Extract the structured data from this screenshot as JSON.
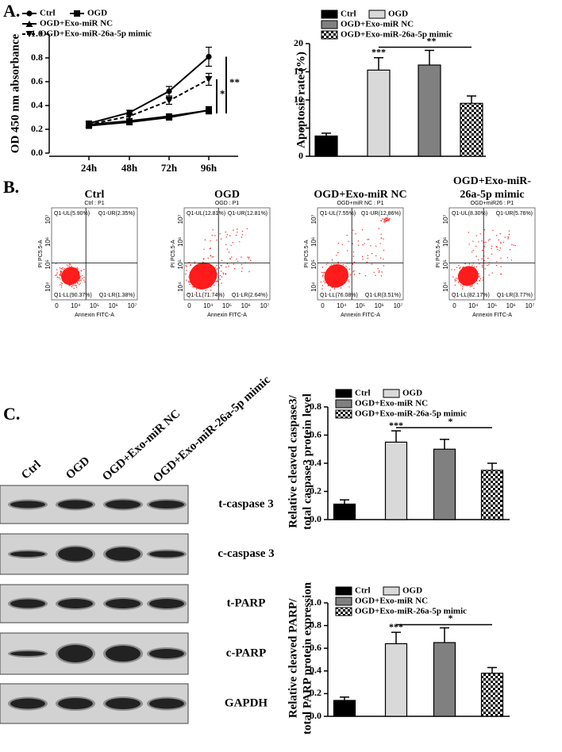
{
  "panel_labels": [
    "A.",
    "B.",
    "C."
  ],
  "chart_data": [
    {
      "type": "line",
      "ylabel": "OD 450 nm absorbance",
      "categories": [
        "24h",
        "48h",
        "72h",
        "96h"
      ],
      "ylim": [
        0,
        1
      ],
      "yticks": [
        {
          "value": 0,
          "label": "0.0"
        },
        0.2,
        0.4,
        0.6,
        0.8,
        {
          "value": 1,
          "label": "1.0"
        }
      ],
      "series": [
        {
          "name": "Ctrl",
          "color": "#000000",
          "marker": "circle",
          "dashed": false,
          "values": [
            0.25,
            0.34,
            0.52,
            0.81
          ],
          "errors": [
            0.02,
            0.02,
            0.04,
            0.08
          ]
        },
        {
          "name": "OGD",
          "color": "#000000",
          "marker": "square",
          "dashed": false,
          "values": [
            0.23,
            0.26,
            0.3,
            0.36
          ],
          "errors": [
            0.02,
            0.02,
            0.02,
            0.03
          ]
        },
        {
          "name": "OGD+Exo-miR NC",
          "color": "#000000",
          "marker": "triangle-up",
          "dashed": false,
          "values": [
            0.24,
            0.27,
            0.31,
            0.36
          ],
          "errors": [
            0.02,
            0.02,
            0.02,
            0.03
          ]
        },
        {
          "name": "OGD+Exo-miR-26a-5p mimic",
          "color": "#000000",
          "marker": "triangle-down",
          "dashed": true,
          "values": [
            0.24,
            0.31,
            0.44,
            0.62
          ],
          "errors": [
            0.02,
            0.02,
            0.03,
            0.05
          ]
        }
      ],
      "annotations": [
        "*",
        "**"
      ]
    },
    {
      "type": "bar",
      "ylabel": [
        "Apoptosis rate (%)"
      ],
      "ylim": [
        0,
        20
      ],
      "yticks": [
        0,
        5,
        10,
        15,
        20
      ],
      "series": [
        {
          "name": "Ctrl",
          "color": "#000000",
          "values": [
            3.6
          ],
          "errors": [
            0.5
          ]
        },
        {
          "name": "OGD",
          "color": "#d9d9d9",
          "values": [
            15.3
          ],
          "errors": [
            2.2
          ]
        },
        {
          "name": "OGD+Exo-miR NC",
          "color": "#808080",
          "values": [
            16.2
          ],
          "errors": [
            2.6
          ]
        },
        {
          "name": "OGD+Exo-miR-26a-5p mimic",
          "color": "#000000",
          "pattern": "checker",
          "values": [
            9.4
          ],
          "errors": [
            1.3
          ]
        }
      ],
      "annotations": [
        "***",
        "**"
      ]
    },
    {
      "type": "bar",
      "ylabel": [
        "Relative cleaved caspase3/",
        "total caspase3 protein level"
      ],
      "ylim": [
        0,
        0.8
      ],
      "yticks": [
        {
          "value": 0,
          "label": "0.0"
        },
        0.2,
        0.4,
        0.6,
        0.8
      ],
      "series": [
        {
          "name": "Ctrl",
          "color": "#000000",
          "values": [
            0.11
          ],
          "errors": [
            0.03
          ]
        },
        {
          "name": "OGD",
          "color": "#d9d9d9",
          "values": [
            0.55
          ],
          "errors": [
            0.08
          ]
        },
        {
          "name": "OGD+Exo-miR NC",
          "color": "#808080",
          "values": [
            0.5
          ],
          "errors": [
            0.07
          ]
        },
        {
          "name": "OGD+Exo-miR-26a-5p mimic",
          "color": "#000000",
          "pattern": "checker",
          "values": [
            0.35
          ],
          "errors": [
            0.05
          ]
        }
      ],
      "annotations": [
        "***",
        "*"
      ]
    },
    {
      "type": "bar",
      "ylabel": [
        "Relative cleaved PARP/",
        "total PARP protein expression"
      ],
      "ylim": [
        0,
        1
      ],
      "yticks": [
        {
          "value": 0,
          "label": "0.0"
        },
        0.2,
        0.4,
        0.6,
        0.8,
        {
          "value": 1,
          "label": "1.0"
        }
      ],
      "series": [
        {
          "name": "Ctrl",
          "color": "#000000",
          "values": [
            0.14
          ],
          "errors": [
            0.03
          ]
        },
        {
          "name": "OGD",
          "color": "#d9d9d9",
          "values": [
            0.64
          ],
          "errors": [
            0.1
          ]
        },
        {
          "name": "OGD+Exo-miR NC",
          "color": "#808080",
          "values": [
            0.65
          ],
          "errors": [
            0.13
          ]
        },
        {
          "name": "OGD+Exo-miR-26a-5p mimic",
          "color": "#000000",
          "pattern": "checker",
          "values": [
            0.38
          ],
          "errors": [
            0.05
          ]
        }
      ],
      "annotations": [
        "***",
        "*"
      ]
    }
  ],
  "flow": {
    "x_label": "Annexin FITC-A",
    "y_label": "PI PC5.5-A",
    "xticks": [
      "0",
      "10⁴",
      "10⁵",
      "10⁶",
      "10⁷"
    ],
    "yticks": [
      "10⁴",
      "10⁵",
      "10⁶",
      "10⁷"
    ],
    "plots": [
      {
        "title": [
          "Ctrl"
        ],
        "subtitle": "Ctrl : P1",
        "quadrants": [
          "Q1-UL(5.90%)",
          "Q1-UR(2.35%)",
          "Q1-LL(90.37%)",
          "Q1-LR(1.38%)"
        ]
      },
      {
        "title": [
          "OGD"
        ],
        "subtitle": "OGD : P1",
        "quadrants": [
          "Q1-UL(12.81%)",
          "Q1-UR(12.81%)",
          "Q1-LL(71.74%)",
          "Q1-LR(2.64%)"
        ]
      },
      {
        "title": [
          "OGD+Exo-miR NC"
        ],
        "subtitle": "OGD+miR NC : P1",
        "quadrants": [
          "Q1-UL(7.55%)",
          "Q1-UR(12.86%)",
          "Q1-LL(76.08%)",
          "Q1-LR(3.51%)"
        ]
      },
      {
        "title": [
          "OGD+Exo-miR-",
          "26a-5p mimic"
        ],
        "subtitle": "OGD+miR26 : P1",
        "quadrants": [
          "Q1-UL(8.30%)",
          "Q1-UR(5.76%)",
          "Q1-LL(82.17%)",
          "Q1-LR(3.77%)"
        ]
      }
    ]
  },
  "blot": {
    "lanes": [
      "Ctrl",
      "OGD",
      "OGD+Exo-miR NC",
      "OGD+Exo-miR-26a-5p mimic"
    ],
    "bands": [
      "t-caspase 3",
      "c-caspase 3",
      "t-PARP",
      "c-PARP",
      "GAPDH"
    ]
  }
}
